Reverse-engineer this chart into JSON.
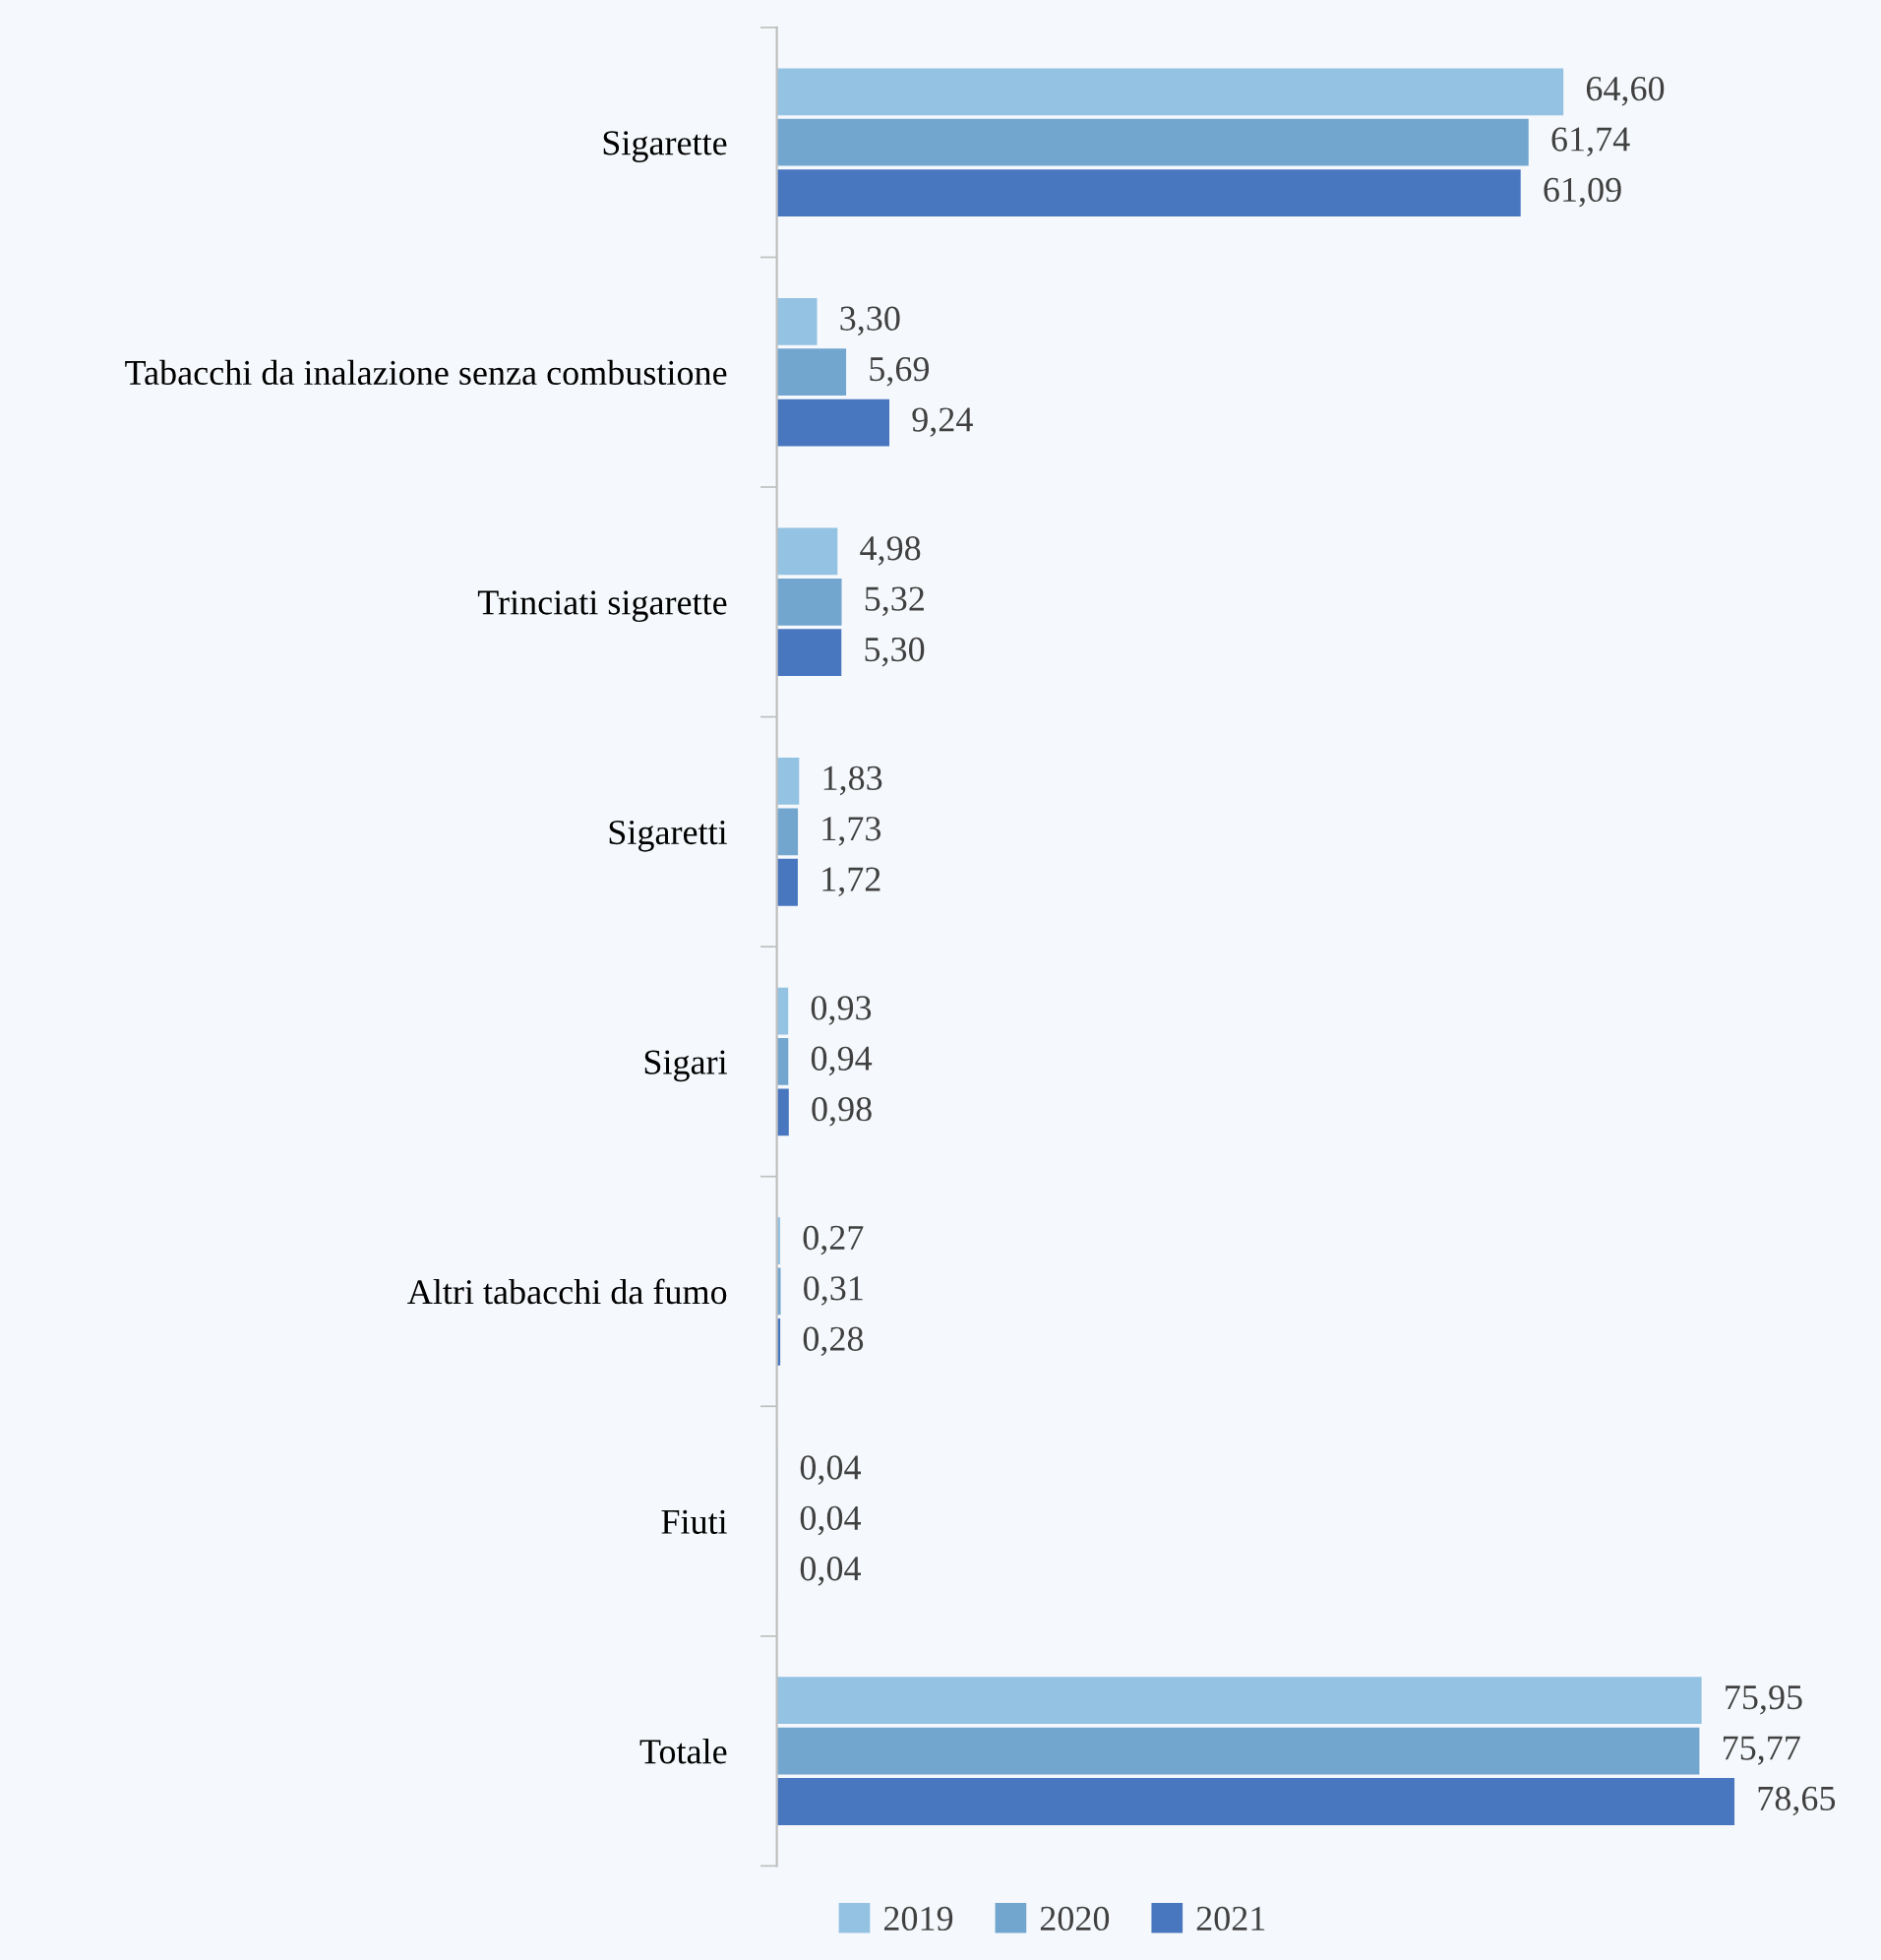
{
  "chart_data": {
    "type": "bar",
    "orientation": "horizontal",
    "categories": [
      "Sigarette",
      "Tabacchi da inalazione senza combustione",
      "Trinciati sigarette",
      "Sigaretti",
      "Sigari",
      "Altri tabacchi da fumo",
      "Fiuti",
      "Totale"
    ],
    "series": [
      {
        "name": "2019",
        "color": "#93c2e2",
        "values": [
          64.6,
          3.3,
          4.98,
          1.83,
          0.93,
          0.27,
          0.04,
          75.95
        ],
        "value_labels": [
          "64,60",
          "3,30",
          "4,98",
          "1,83",
          "0,93",
          "0,27",
          "0,04",
          "75,95"
        ]
      },
      {
        "name": "2020",
        "color": "#72a6cf",
        "values": [
          61.74,
          5.69,
          5.32,
          1.73,
          0.94,
          0.31,
          0.04,
          75.77
        ],
        "value_labels": [
          "61,74",
          "5,69",
          "5,32",
          "1,73",
          "0,94",
          "0,31",
          "0,04",
          "75,77"
        ]
      },
      {
        "name": "2021",
        "color": "#4877c0",
        "values": [
          61.09,
          9.24,
          5.3,
          1.72,
          0.98,
          0.28,
          0.04,
          78.65
        ],
        "value_labels": [
          "61,09",
          "9,24",
          "5,30",
          "1,72",
          "0,98",
          "0,28",
          "0,04",
          "78,65"
        ]
      }
    ],
    "legend": "bottom",
    "grid": false,
    "tick_labels": "y"
  }
}
